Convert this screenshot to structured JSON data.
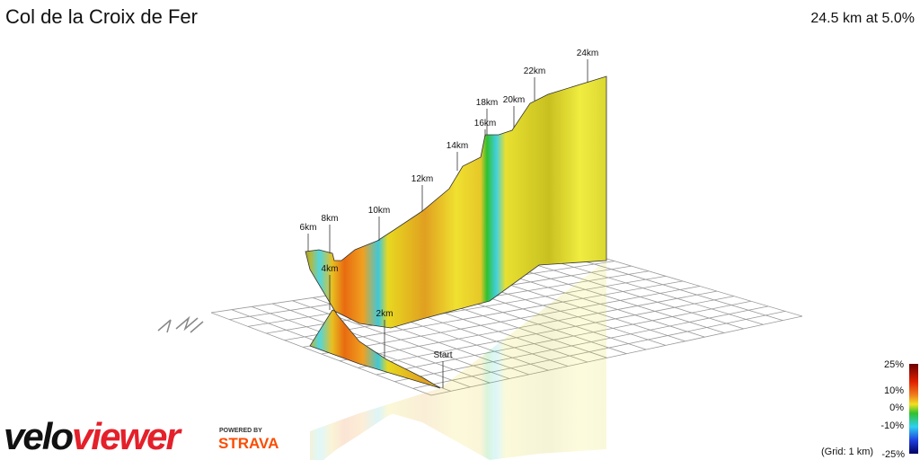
{
  "header": {
    "title": "Col de la Croix de Fer",
    "summary": "24.5 km at 5.0%"
  },
  "markers": [
    "Start",
    "2km",
    "4km",
    "6km",
    "8km",
    "10km",
    "12km",
    "14km",
    "16km",
    "18km",
    "20km",
    "22km",
    "24km"
  ],
  "legend": {
    "labels": [
      "25%",
      "10%",
      "0%",
      "-10%",
      "-25%"
    ],
    "grid_note": "(Grid: 1 km)"
  },
  "branding": {
    "logo_part1": "velo",
    "logo_part2": "viewer",
    "powered_by": "POWERED BY",
    "partner": "STRAVA"
  }
}
